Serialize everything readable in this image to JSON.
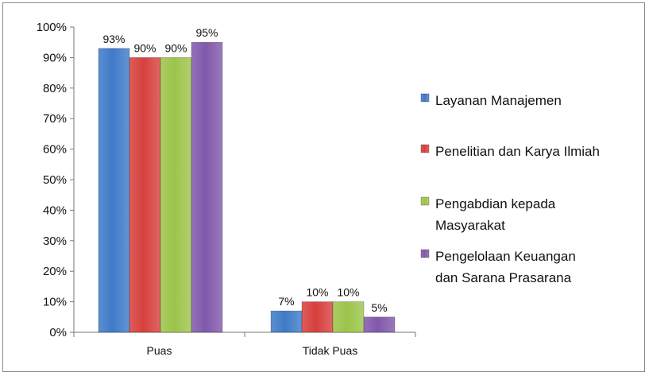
{
  "chart_data": {
    "type": "bar",
    "categories": [
      "Puas",
      "Tidak Puas"
    ],
    "series": [
      {
        "name": "Layanan Manajemen",
        "values": [
          93,
          7
        ],
        "labels": [
          "93%",
          "7%"
        ],
        "color": "#3f7ac8"
      },
      {
        "name": "Penelitian dan Karya Ilmiah",
        "values": [
          90,
          10
        ],
        "labels": [
          "90%",
          "10%"
        ],
        "color": "#d6403e"
      },
      {
        "name": "Pengabdian kepada Masyarakat",
        "values": [
          90,
          10
        ],
        "labels": [
          "90%",
          "10%"
        ],
        "color": "#9cc44a"
      },
      {
        "name": "Pengelolaan Keuangan dan Sarana Prasarana",
        "values": [
          95,
          5
        ],
        "labels": [
          "95%",
          "5%"
        ],
        "color": "#8158ab"
      }
    ],
    "legend_lines": [
      [
        "Layanan Manajemen"
      ],
      [
        "Penelitian dan Karya Ilmiah"
      ],
      [
        "Pengabdian kepada",
        "Masyarakat"
      ],
      [
        "Pengelolaan Keuangan",
        "dan Sarana Prasarana"
      ]
    ],
    "yticks": [
      "0%",
      "10%",
      "20%",
      "30%",
      "40%",
      "50%",
      "60%",
      "70%",
      "80%",
      "90%",
      "100%"
    ],
    "ylim": [
      0,
      100
    ],
    "grid": false,
    "legend_position": "right",
    "title": "",
    "xlabel": "",
    "ylabel": ""
  }
}
